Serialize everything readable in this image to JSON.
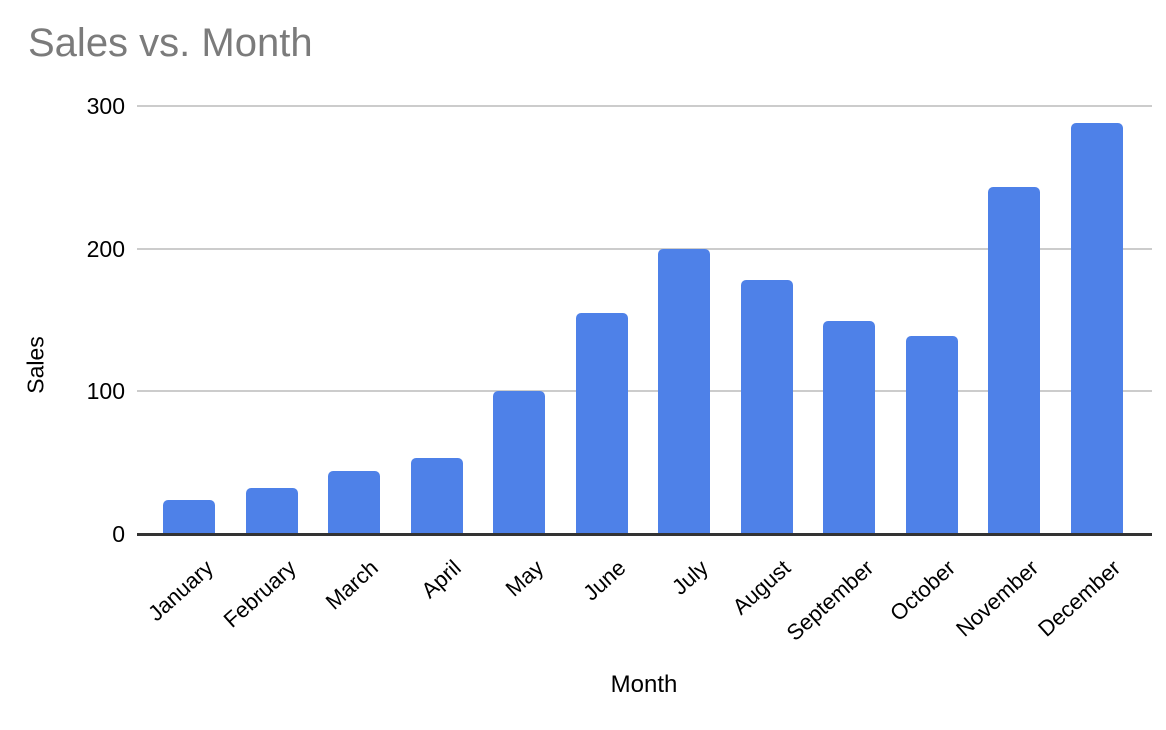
{
  "chart_data": {
    "type": "bar",
    "title": "Sales vs. Month",
    "xlabel": "Month",
    "ylabel": "Sales",
    "categories": [
      "January",
      "February",
      "March",
      "April",
      "May",
      "June",
      "July",
      "August",
      "September",
      "October",
      "November",
      "December"
    ],
    "series": [
      {
        "name": "Sales",
        "values": [
          24,
          32,
          44,
          53,
          100,
          155,
          200,
          178,
          149,
          139,
          243,
          288
        ]
      }
    ],
    "ylim": [
      0,
      300
    ],
    "yticks": [
      0,
      100,
      200,
      300
    ],
    "grid": true,
    "legend_position": "none",
    "colors": {
      "bar": "#4e81e8",
      "title_text": "#7b7b7b",
      "axis_text": "#000000",
      "gridline": "#cccccc",
      "axis_baseline": "#333333",
      "background": "#ffffff"
    }
  }
}
